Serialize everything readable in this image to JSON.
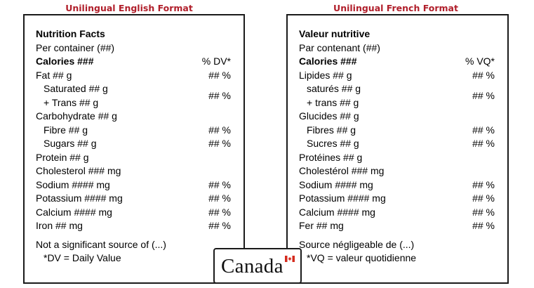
{
  "formats": {
    "english_title": "Unilingual English Format",
    "french_title": "Unilingual French Format"
  },
  "english": {
    "heading": "Nutrition Facts",
    "serving": "Per container (##)",
    "calories": "Calories ###",
    "dv_header": "% DV*",
    "fat": "Fat ## g",
    "fat_dv": "## %",
    "saturated": "Saturated ## g",
    "trans": "+ Trans ## g",
    "sat_trans_dv": "## %",
    "carbohydrate": "Carbohydrate ## g",
    "fibre": "Fibre ## g",
    "fibre_dv": "## %",
    "sugars": "Sugars ## g",
    "sugars_dv": "## %",
    "protein": "Protein ## g",
    "cholesterol": "Cholesterol ### mg",
    "sodium": "Sodium #### mg",
    "sodium_dv": "## %",
    "potassium": "Potassium #### mg",
    "potassium_dv": "## %",
    "calcium": "Calcium #### mg",
    "calcium_dv": "## %",
    "iron": "Iron ## mg",
    "iron_dv": "## %",
    "not_significant": "Not a significant source of (...)",
    "footnote": "*DV = Daily Value"
  },
  "french": {
    "heading": "Valeur nutritive",
    "serving": "Par contenant (##)",
    "calories": "Calories ###",
    "dv_header": "% VQ*",
    "fat": "Lipides ## g",
    "fat_dv": "## %",
    "saturated": "saturés ## g",
    "trans": "+ trans ## g",
    "sat_trans_dv": "## %",
    "carbohydrate": "Glucides ## g",
    "fibre": "Fibres ## g",
    "fibre_dv": "## %",
    "sugars": "Sucres ## g",
    "sugars_dv": "## %",
    "protein": "Protéines ## g",
    "cholesterol": "Cholestérol ### mg",
    "sodium": "Sodium #### mg",
    "sodium_dv": "## %",
    "potassium": "Potassium #### mg",
    "potassium_dv": "## %",
    "calcium": "Calcium #### mg",
    "calcium_dv": "## %",
    "iron": "Fer ## mg",
    "iron_dv": "## %",
    "not_significant": "Source négligeable de (...)",
    "footnote": "*VQ = valeur quotidienne"
  },
  "logo": {
    "wordmark": "Canada",
    "icon": "canadian-flag-icon"
  },
  "colors": {
    "format_title": "#b01e2a",
    "border": "#1a1a1a",
    "flag_red": "#d52b1e"
  }
}
